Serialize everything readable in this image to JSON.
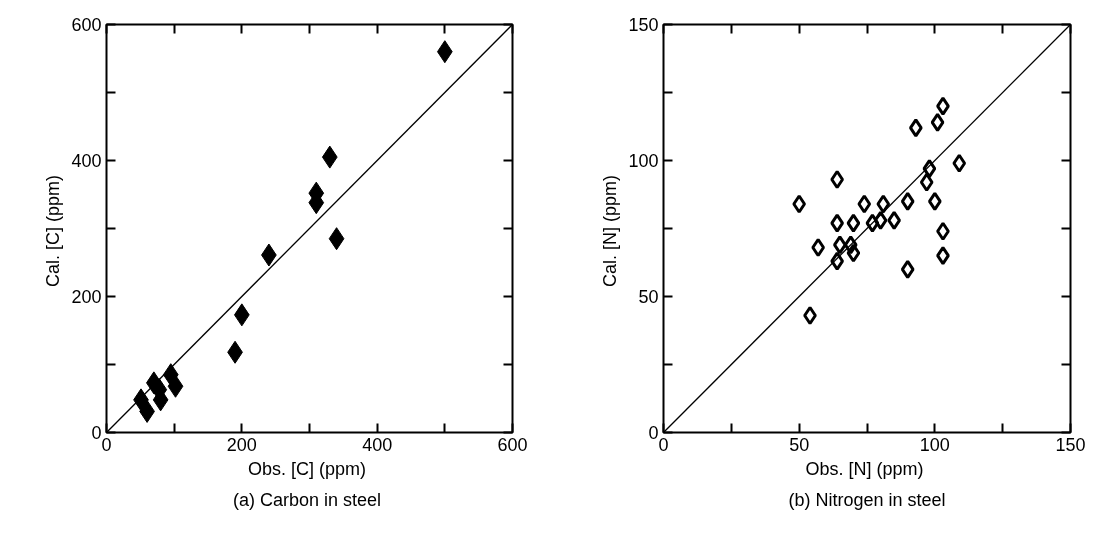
{
  "chart_data": [
    {
      "type": "scatter",
      "title": "(a)  Carbon in steel",
      "xlabel": "Obs. [C]  (ppm)",
      "ylabel": "Cal. [C]  (ppm)",
      "xlim": [
        0,
        600
      ],
      "ylim": [
        0,
        600
      ],
      "xticks": [
        0,
        {
          "value": 100,
          "label": null
        },
        200,
        {
          "value": 300,
          "label": null
        },
        400,
        {
          "value": 500,
          "label": null
        },
        600
      ],
      "yticks": [
        0,
        {
          "value": 100,
          "label": null
        },
        200,
        {
          "value": 300,
          "label": null
        },
        400,
        {
          "value": 500,
          "label": null
        },
        600
      ],
      "grid": false,
      "marker": "diamond",
      "series": [
        {
          "color": "#000000",
          "x": [
            500,
            330,
            310,
            310,
            340,
            240,
            200,
            190,
            51,
            60,
            70,
            95,
            102,
            80,
            78
          ],
          "values": [
            560,
            405,
            352,
            338,
            285,
            261,
            173,
            118,
            48,
            31,
            73,
            85,
            68,
            48,
            63
          ]
        },
        {
          "type": "line",
          "color": "#000000",
          "marker": "none",
          "x": [
            0,
            600
          ],
          "values": [
            0,
            600
          ]
        }
      ]
    },
    {
      "type": "scatter",
      "title": "(b) Nitrogen in steel",
      "xlabel": "Obs. [N]  (ppm)",
      "ylabel": "Cal. [N]  (ppm)",
      "xlim": [
        0,
        150
      ],
      "ylim": [
        0,
        150
      ],
      "xticks": [
        0,
        {
          "value": 25,
          "label": null
        },
        50,
        {
          "value": 75,
          "label": null
        },
        100,
        {
          "value": 125,
          "label": null
        },
        150
      ],
      "yticks": [
        0,
        {
          "value": 25,
          "label": null
        },
        50,
        {
          "value": 75,
          "label": null
        },
        100,
        {
          "value": 125,
          "label": null
        },
        150
      ],
      "grid": false,
      "marker": "diamond",
      "series": [
        {
          "color": "#000000",
          "x": [
            50,
            64,
            93,
            101,
            103,
            109,
            98,
            97,
            90,
            100,
            103,
            103,
            90,
            54,
            57,
            64,
            70,
            74,
            81,
            77,
            80,
            85,
            65,
            69,
            70,
            64
          ],
          "values": [
            84,
            93,
            112,
            114,
            120,
            99,
            97,
            92,
            85,
            85,
            74,
            65,
            60,
            43,
            68,
            77,
            77,
            84,
            84,
            77,
            78,
            78,
            69,
            69,
            66,
            63
          ]
        },
        {
          "type": "line",
          "color": "#000000",
          "marker": "none",
          "x": [
            0,
            150
          ],
          "values": [
            0,
            150
          ]
        }
      ]
    }
  ]
}
